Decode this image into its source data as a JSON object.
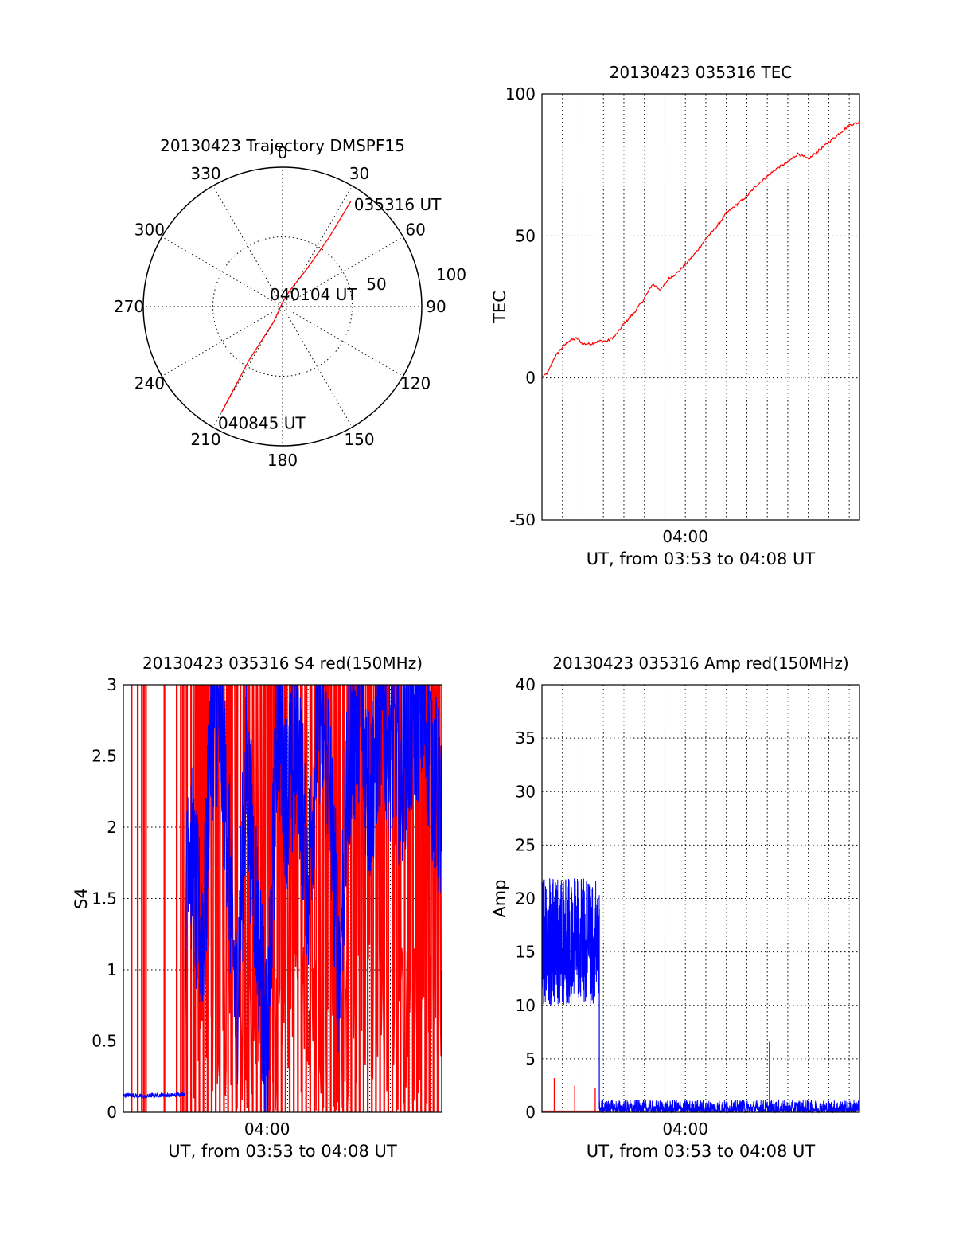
{
  "colors": {
    "red": "#ff0000",
    "blue": "#0000ff",
    "axis": "#000000"
  },
  "chart_data": [
    {
      "type": "polar",
      "title": "20130423 Trajectory DMSPF15",
      "angle_ticks": [
        "0",
        "30",
        "60",
        "90",
        "120",
        "150",
        "180",
        "210",
        "240",
        "270",
        "300",
        "330"
      ],
      "radial_tick_labels": [
        "50",
        "100"
      ],
      "radial_max": 100,
      "track": {
        "color": "#ff0000",
        "points": [
          {
            "az": 33,
            "r": 90,
            "label": "035316 UT"
          },
          {
            "az": 34,
            "r": 60
          },
          {
            "az": 33,
            "r": 32
          },
          {
            "az": 24,
            "r": 12
          },
          {
            "az": 0,
            "r": 3,
            "label": "040104 UT"
          },
          {
            "az": 210,
            "r": 12
          },
          {
            "az": 212,
            "r": 45
          },
          {
            "az": 210,
            "r": 88,
            "label": "040845 UT"
          }
        ]
      },
      "grid": true
    },
    {
      "type": "line",
      "title": "20130423 035316 TEC",
      "ylabel": "TEC",
      "xlabel": "UT, from 03:53 to 04:08 UT",
      "xticklabels": [
        "04:00"
      ],
      "yticks": [
        "-50",
        "0",
        "50",
        "100"
      ],
      "ylim": [
        -50,
        100
      ],
      "xlim_minutes": [
        0,
        15.5
      ],
      "grid": true,
      "series": [
        {
          "color": "#ff0000",
          "x": [
            0,
            0.3,
            0.6,
            0.9,
            1.3,
            1.7,
            2.0,
            2.4,
            2.8,
            3.2,
            3.6,
            4.0,
            4.5,
            5.0,
            5.4,
            5.8,
            6.2,
            6.6,
            7.0,
            7.5,
            8.0,
            8.5,
            9.0,
            9.5,
            10.0,
            10.5,
            11.0,
            11.5,
            12.0,
            12.5,
            13.0,
            13.5,
            14.0,
            14.5,
            15.0,
            15.5
          ],
          "y": [
            0,
            2,
            7,
            10,
            13,
            14,
            12,
            12,
            13,
            13,
            15,
            19,
            23,
            28,
            33,
            31,
            35,
            37,
            40,
            44,
            49,
            53,
            58,
            61,
            64,
            68,
            71,
            74,
            76,
            79,
            77,
            80,
            83,
            86,
            89,
            90
          ]
        }
      ]
    },
    {
      "type": "line",
      "title": "20130423 035316 S4 red(150MHz)",
      "ylabel": "S4",
      "xlabel": "UT, from 03:53 to 04:08 UT",
      "xticklabels": [
        "04:00"
      ],
      "yticks": [
        "0",
        "0.5",
        "1",
        "1.5",
        "2",
        "2.5",
        "3"
      ],
      "ylim": [
        0,
        3
      ],
      "xlim_minutes": [
        0,
        15.5
      ],
      "grid": true,
      "series": [
        {
          "color": "#ff0000",
          "style": "saturated vertical spikes",
          "spike_x": [
            0.4,
            0.7,
            0.9,
            1.0,
            1.1,
            2.0,
            2.6,
            2.8,
            2.9,
            3.0,
            3.1,
            3.3,
            3.5,
            3.7,
            3.9,
            4.1,
            4.3,
            4.5,
            4.7,
            4.9,
            5.1,
            5.3,
            5.5,
            5.7,
            5.9,
            6.1,
            6.3,
            6.5,
            6.7,
            6.9,
            7.1,
            7.3,
            7.5,
            7.7,
            7.9,
            8.1,
            8.3,
            8.5,
            8.7,
            8.9,
            9.1,
            9.3,
            9.5,
            9.7,
            9.9,
            10.1,
            10.3,
            10.5,
            10.7,
            10.9,
            11.1,
            11.3,
            11.5,
            11.7,
            11.9,
            12.1,
            12.3,
            12.5,
            12.7,
            12.9,
            13.1,
            13.3,
            13.5,
            13.7,
            13.9,
            14.1,
            14.3,
            14.5,
            14.7,
            14.9,
            15.1,
            15.3
          ]
        },
        {
          "color": "#0000ff",
          "x": [
            0,
            0.5,
            1.0,
            1.5,
            2.0,
            2.5,
            3.0,
            3.1,
            3.3,
            3.5,
            3.7,
            4.0,
            4.2,
            4.5,
            4.8,
            5.0,
            5.5,
            6.0,
            6.5,
            7.0,
            7.5,
            8.0,
            8.5,
            9.0,
            9.5,
            10.0,
            10.5,
            11.0,
            11.5,
            12.0,
            12.5,
            13.0,
            13.5,
            14.0,
            14.5,
            15.0,
            15.5
          ],
          "y": [
            0.12,
            0.12,
            0.11,
            0.12,
            0.12,
            0.12,
            0.13,
            2.2,
            1.8,
            1.5,
            1.3,
            1.4,
            2.6,
            2.9,
            2.5,
            2.2,
            0.7,
            2.4,
            1.4,
            0.3,
            2.8,
            2.2,
            2.6,
            1.6,
            2.9,
            2.4,
            1.0,
            2.5,
            2.9,
            2.2,
            2.8,
            2.6,
            2.4,
            2.7,
            2.9,
            2.5,
            2.0
          ]
        }
      ]
    },
    {
      "type": "line",
      "title": "20130423 035316 Amp red(150MHz)",
      "ylabel": "Amp",
      "xlabel": "UT, from 03:53 to 04:08 UT",
      "xticklabels": [
        "04:00"
      ],
      "yticks": [
        "0",
        "5",
        "10",
        "15",
        "20",
        "25",
        "30",
        "35",
        "40"
      ],
      "ylim": [
        0,
        40
      ],
      "xlim_minutes": [
        0,
        15.5
      ],
      "grid": true,
      "series": [
        {
          "color": "#0000ff",
          "style": "noise band",
          "segments": [
            {
              "x0": 0,
              "x1": 2.8,
              "low": 10,
              "high": 22,
              "center": 15.5
            },
            {
              "x0": 2.8,
              "x1": 15.5,
              "low": 0,
              "high": 1.2,
              "center": 0.4
            }
          ]
        },
        {
          "color": "#ff0000",
          "style": "spikes",
          "spike_x": [
            0.6,
            1.6,
            2.6,
            7.7,
            11.1
          ],
          "spike_y": [
            3.2,
            2.5,
            2.3,
            0.8,
            6.6
          ]
        }
      ]
    }
  ]
}
